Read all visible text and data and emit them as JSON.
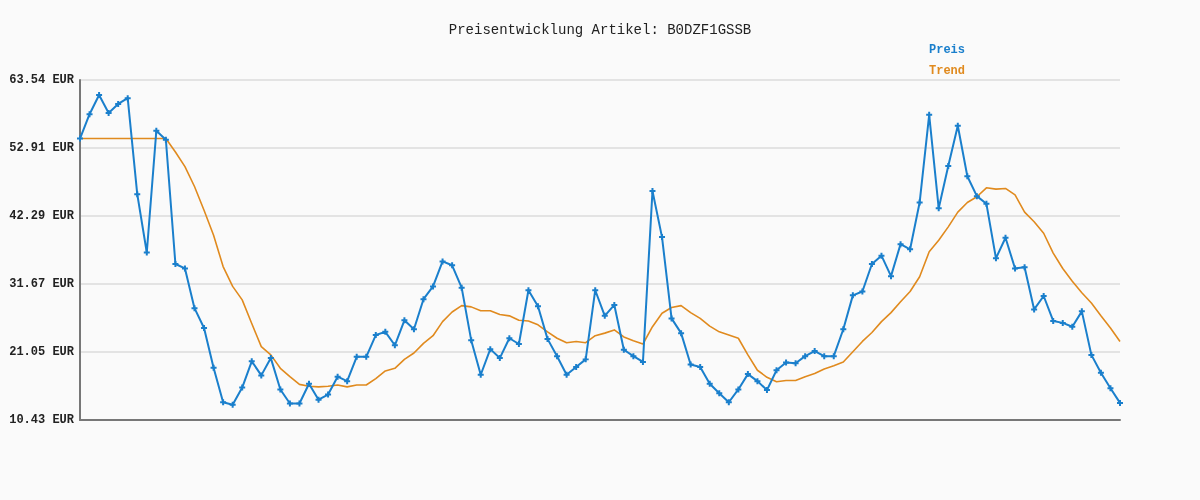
{
  "chart_data": {
    "type": "line",
    "title": "Preisentwicklung Artikel: B0DZF1GSSB",
    "categories": [
      null,
      null,
      null,
      null,
      null,
      null,
      null,
      null,
      null,
      null,
      null,
      null,
      null,
      null,
      null,
      null,
      null,
      null,
      null,
      null,
      null,
      null,
      null,
      null,
      null,
      null,
      null,
      null,
      null,
      null,
      null,
      null,
      null,
      null,
      null,
      null,
      null,
      null,
      null,
      null,
      null,
      null,
      null,
      null,
      null,
      null,
      null,
      null,
      null,
      null,
      null,
      null,
      null,
      null,
      null,
      null,
      null,
      null,
      null,
      null,
      null,
      null,
      null,
      null,
      null,
      null,
      null,
      null,
      null,
      null,
      null,
      null,
      null,
      null,
      null,
      null,
      null,
      null,
      null,
      null,
      null,
      null,
      null,
      null,
      null,
      null,
      null,
      null,
      null,
      null,
      null,
      null,
      null,
      null,
      null,
      null,
      null,
      null,
      null,
      null,
      null,
      null,
      null,
      null,
      null,
      null,
      null,
      null,
      null,
      null
    ],
    "series": [
      {
        "name": "Preis",
        "color": "#1a7fcc",
        "marker": "cross",
        "values": [
          54.4,
          58.2,
          61.2,
          58.4,
          59.8,
          60.7,
          45.7,
          36.6,
          55.6,
          54.2,
          34.8,
          34.1,
          27.9,
          24.8,
          18.6,
          13.2,
          12.8,
          15.5,
          19.6,
          17.4,
          20.1,
          15.2,
          13.0,
          13.0,
          16.1,
          13.6,
          14.4,
          17.2,
          16.5,
          20.3,
          20.3,
          23.7,
          24.2,
          22.1,
          26.0,
          24.6,
          29.3,
          31.3,
          35.2,
          34.6,
          31.1,
          22.9,
          17.5,
          21.5,
          20.1,
          23.2,
          22.3,
          30.7,
          28.2,
          23.1,
          20.4,
          17.5,
          18.7,
          19.9,
          30.7,
          26.7,
          28.4,
          21.4,
          20.4,
          19.5,
          46.2,
          39.0,
          26.3,
          24.0,
          19.1,
          18.7,
          16.1,
          14.6,
          13.2,
          15.2,
          17.6,
          16.5,
          15.1,
          18.2,
          19.4,
          19.3,
          20.4,
          21.2,
          20.4,
          20.4,
          24.6,
          29.9,
          30.5,
          34.8,
          36.1,
          32.9,
          37.9,
          37.1,
          44.4,
          58.1,
          43.5,
          50.1,
          56.4,
          48.5,
          45.4,
          44.2,
          35.7,
          38.9,
          34.1,
          34.3,
          27.7,
          29.8,
          25.9,
          25.6,
          25.0,
          27.4,
          20.6,
          17.8,
          15.4,
          13.1
        ]
      },
      {
        "name": "Trend",
        "color": "#e08a1e",
        "marker": "none",
        "values": [
          54.4,
          54.4,
          54.4,
          54.4,
          54.4,
          54.4,
          54.4,
          54.4,
          54.4,
          54.4,
          52.3,
          50.0,
          46.9,
          43.2,
          39.3,
          34.4,
          31.3,
          29.2,
          25.5,
          21.9,
          20.6,
          18.5,
          17.2,
          16.0,
          15.7,
          15.6,
          15.7,
          15.9,
          15.6,
          15.9,
          15.9,
          16.9,
          18.1,
          18.5,
          19.9,
          20.9,
          22.4,
          23.6,
          25.8,
          27.3,
          28.3,
          28.1,
          27.5,
          27.5,
          26.9,
          26.7,
          26.0,
          25.9,
          25.3,
          24.2,
          23.2,
          22.5,
          22.7,
          22.5,
          23.6,
          24.0,
          24.5,
          23.4,
          22.8,
          22.3,
          25.0,
          27.1,
          28.0,
          28.3,
          27.2,
          26.3,
          25.1,
          24.2,
          23.7,
          23.2,
          20.6,
          18.2,
          17.1,
          16.4,
          16.6,
          16.6,
          17.2,
          17.7,
          18.4,
          18.9,
          19.5,
          21.1,
          22.7,
          24.1,
          25.8,
          27.2,
          28.9,
          30.5,
          32.8,
          36.7,
          38.5,
          40.6,
          42.9,
          44.4,
          45.3,
          46.7,
          46.5,
          46.6,
          45.6,
          42.9,
          41.4,
          39.6,
          36.5,
          34.1,
          32.1,
          30.3,
          28.7,
          26.7,
          24.8,
          22.7
        ]
      }
    ],
    "ylim": [
      10.43,
      63.54
    ],
    "yticks": [
      {
        "value": 10.43,
        "label": "10.43 EUR"
      },
      {
        "value": 21.05,
        "label": "21.05 EUR"
      },
      {
        "value": 31.67,
        "label": "31.67 EUR"
      },
      {
        "value": 42.29,
        "label": "42.29 EUR"
      },
      {
        "value": 52.91,
        "label": "52.91 EUR"
      },
      {
        "value": 63.54,
        "label": "63.54 EUR"
      }
    ],
    "grid": "y",
    "legend": "top right",
    "tick_labels": "y",
    "line_style": "solid"
  }
}
